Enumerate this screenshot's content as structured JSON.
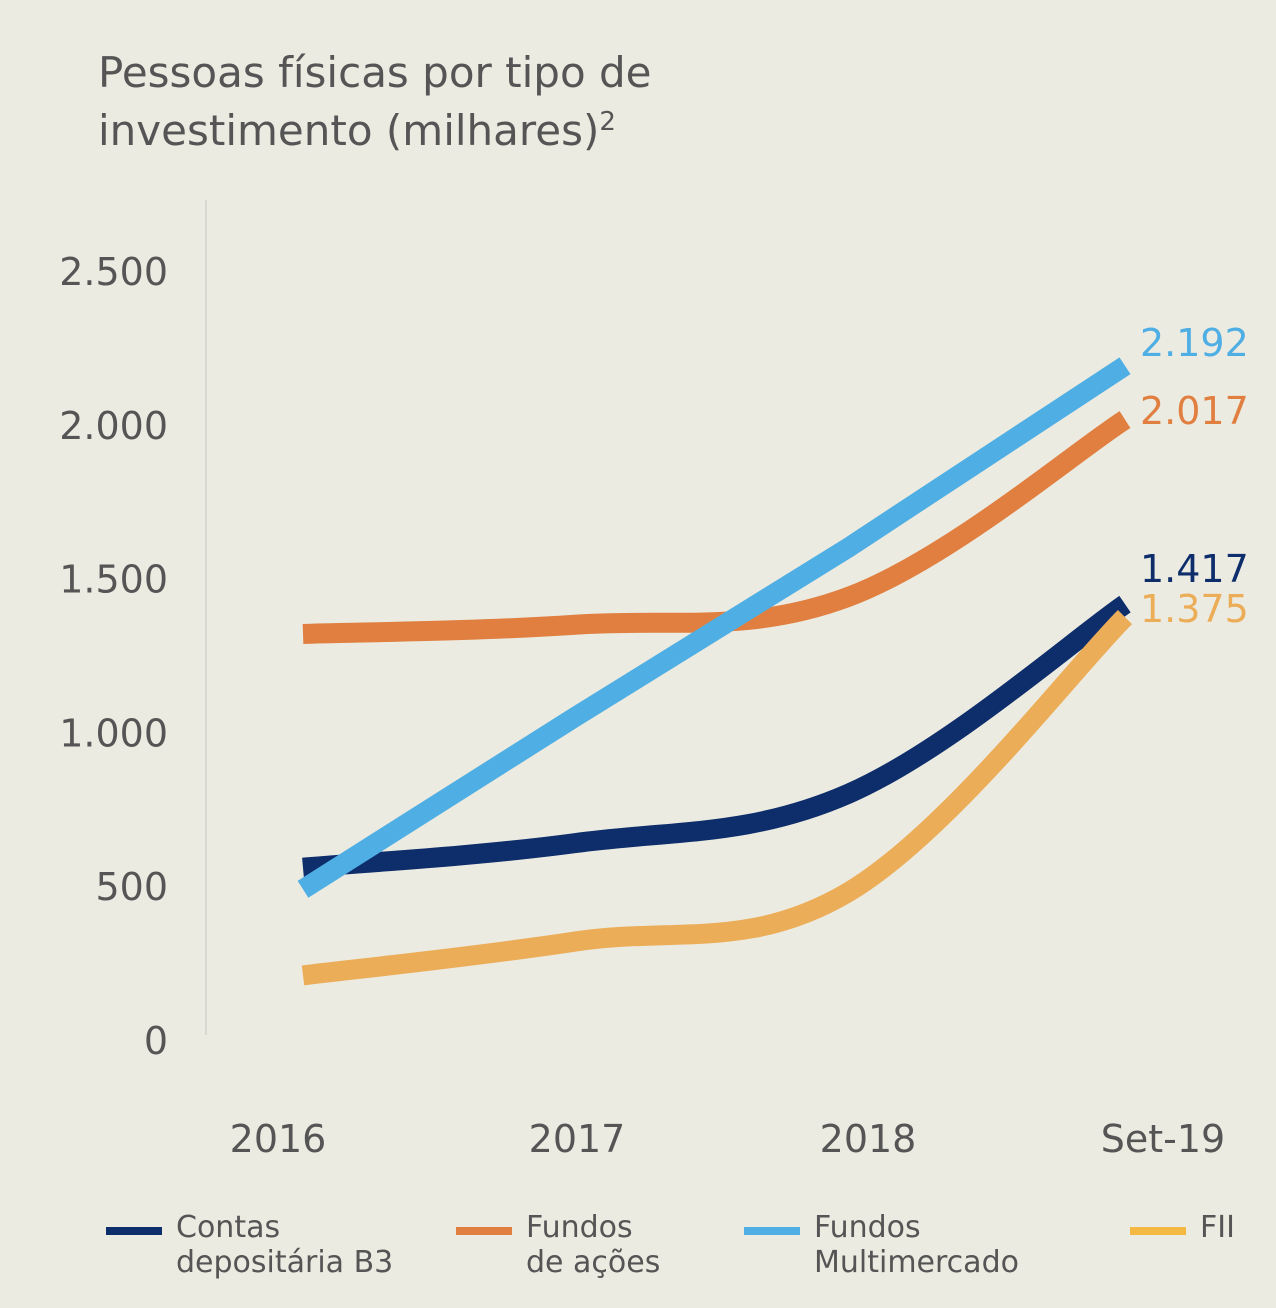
{
  "title": "Pessoas físicas por tipo de\ninvestimento (milhares)",
  "title_superscript": "2",
  "chart_data": {
    "type": "line",
    "categories": [
      "2016",
      "2017",
      "2018",
      "Set-19"
    ],
    "ylim": [
      0,
      2700
    ],
    "yticks": [
      0,
      500,
      1000,
      1500,
      2000,
      2500
    ],
    "ytick_labels": [
      "0",
      "500",
      "1.000",
      "1.500",
      "2.000",
      "2.500"
    ],
    "grid": false,
    "legend_position": "bottom",
    "series": [
      {
        "name": "Contas depositária B3",
        "color": "#0d2d6b",
        "values": [
          560,
          640,
          800,
          1417
        ],
        "end_label": "1.417"
      },
      {
        "name": "Fundos de ações",
        "color": "#e07f40",
        "values": [
          1320,
          1350,
          1440,
          2017
        ],
        "end_label": "2.017"
      },
      {
        "name": "Fundos Multimercado",
        "color": "#4faee3",
        "values": [
          490,
          1050,
          1600,
          2192
        ],
        "end_label": "2.192"
      },
      {
        "name": "FII",
        "color": "#ecad58",
        "values": [
          210,
          320,
          480,
          1375
        ],
        "end_label": "1.375"
      }
    ]
  },
  "legend": [
    {
      "label": "Contas\ndepositária B3",
      "color": "#0d2d6b"
    },
    {
      "label": "Fundos\nde ações",
      "color": "#e07f40"
    },
    {
      "label": "Fundos\nMultimercado",
      "color": "#4faee3"
    },
    {
      "label": "FII",
      "color": "#f4b942"
    }
  ]
}
